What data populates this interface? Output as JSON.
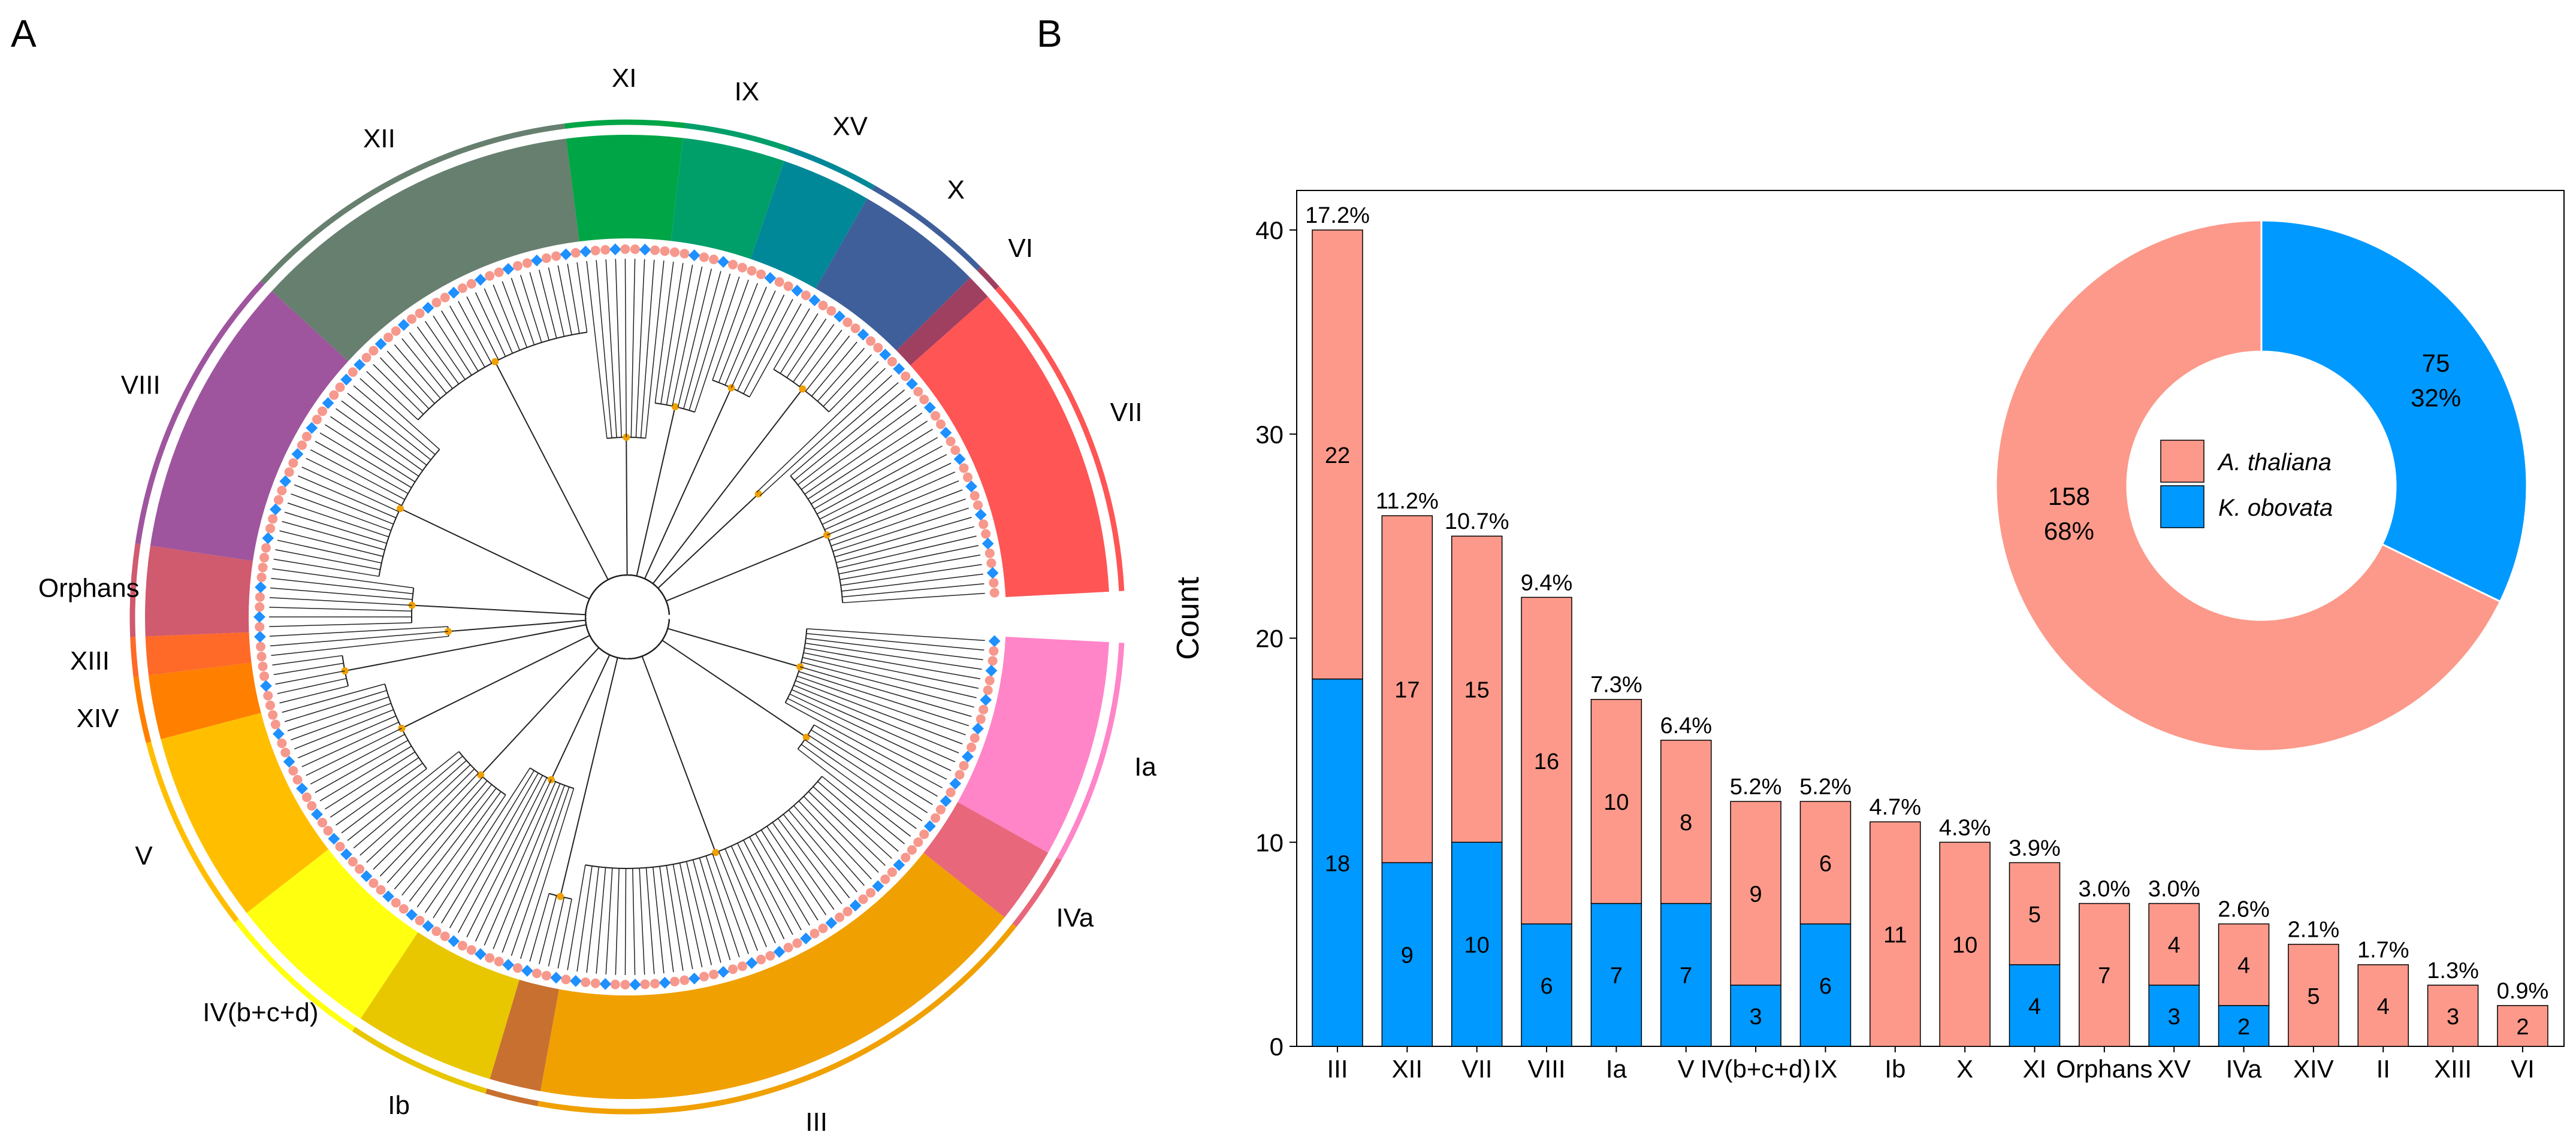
{
  "panels": {
    "a": "A",
    "b": "B"
  },
  "tree": {
    "clades": [
      {
        "name": "Ia",
        "size": 17,
        "color": "#ff85c8"
      },
      {
        "name": "IVa",
        "size": 6,
        "color": "#e8677a"
      },
      {
        "name": "III",
        "size": 40,
        "color": "#f0a000"
      },
      {
        "name": "IX",
        "size": 4,
        "color": "#c87030"
      },
      {
        "name": "Ib",
        "size": 11,
        "color": "#e8c600"
      },
      {
        "name": "IV(b+c+d)",
        "size": 12,
        "color": "#ffff10"
      },
      {
        "name": "V",
        "size": 15,
        "color": "#ffbf00"
      },
      {
        "name": "XIV",
        "size": 5,
        "color": "#ff7f00"
      },
      {
        "name": "XIII",
        "size": 3,
        "color": "#ff6a28"
      },
      {
        "name": "Orphans",
        "size": 7,
        "color": "#d05a6e"
      },
      {
        "name": "VIII",
        "size": 22,
        "color": "#9e559e"
      },
      {
        "name": "XII",
        "size": 26,
        "color": "#677f6f"
      },
      {
        "name": "XI",
        "size": 9,
        "color": "#00a546"
      },
      {
        "name": "IX",
        "size": 8,
        "color": "#009f6a"
      },
      {
        "name": "XV",
        "size": 7,
        "color": "#008898"
      },
      {
        "name": "X",
        "size": 10,
        "color": "#3f5f9a"
      },
      {
        "name": "VI",
        "size": 2,
        "color": "#a04060"
      },
      {
        "name": "VII",
        "size": 25,
        "color": "#ff5555"
      }
    ],
    "leaf_colors": {
      "athaliana": "#f7988d",
      "kobovata": "#1e90ff",
      "node": "#f0a000"
    }
  },
  "chart_data": [
    {
      "type": "bar",
      "stacked": true,
      "categories": [
        "III",
        "XII",
        "VII",
        "VIII",
        "Ia",
        "V",
        "IV(b+c+d)",
        "IX",
        "Ib",
        "X",
        "XI",
        "Orphans",
        "XV",
        "IVa",
        "XIV",
        "II",
        "XIII",
        "VI"
      ],
      "series": [
        {
          "name": "K. obovata",
          "color": "#0099ff",
          "values": [
            18,
            9,
            10,
            6,
            7,
            7,
            3,
            6,
            0,
            0,
            4,
            0,
            3,
            2,
            0,
            0,
            0,
            0
          ]
        },
        {
          "name": "A. thaliana",
          "color": "#fc998a",
          "values": [
            22,
            17,
            15,
            16,
            10,
            8,
            9,
            6,
            11,
            10,
            5,
            7,
            4,
            4,
            5,
            4,
            3,
            2
          ]
        }
      ],
      "percent_labels": [
        "17.2%",
        "11.2%",
        "10.7%",
        "9.4%",
        "7.3%",
        "6.4%",
        "5.2%",
        "5.2%",
        "4.7%",
        "4.3%",
        "3.9%",
        "3.0%",
        "3.0%",
        "2.6%",
        "2.1%",
        "1.7%",
        "1.3%",
        "0.9%"
      ],
      "ylabel": "Count",
      "xlabel": "",
      "ylim": [
        0,
        42
      ],
      "yticks": [
        "0",
        "10",
        "20",
        "30",
        "40"
      ],
      "grid": false
    },
    {
      "type": "pie",
      "donut": true,
      "slices": [
        {
          "name": "K. obovata",
          "value": 75,
          "percent": "32%",
          "color": "#0099ff"
        },
        {
          "name": "A. thaliana",
          "value": 158,
          "percent": "68%",
          "color": "#fc998a"
        }
      ],
      "legend": [
        "A. thaliana",
        "K. obovata"
      ],
      "legend_placement": "center"
    }
  ]
}
